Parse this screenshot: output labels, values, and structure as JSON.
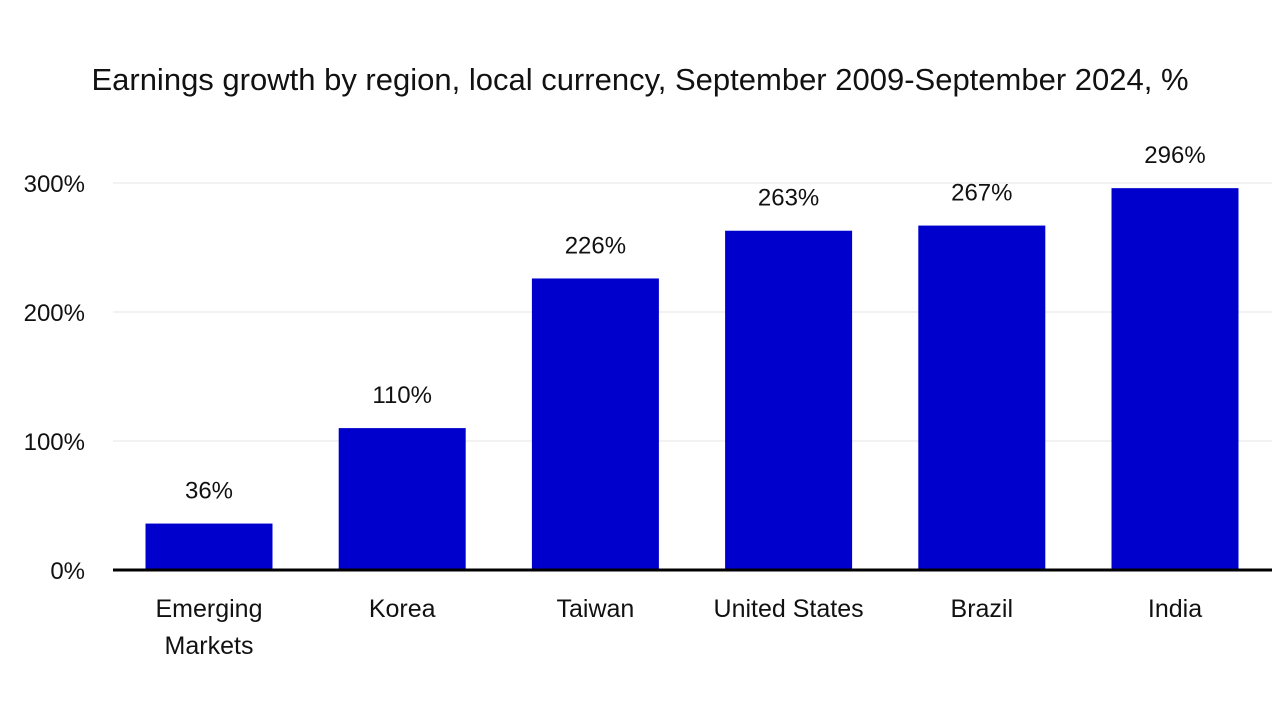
{
  "chart_data": {
    "type": "bar",
    "title": "Earnings growth by region, local currency, September 2009-September 2024, %",
    "xlabel": "",
    "ylabel": "",
    "categories": [
      "Emerging Markets",
      "Korea",
      "Taiwan",
      "United States",
      "Brazil",
      "India"
    ],
    "values": [
      36,
      110,
      226,
      263,
      267,
      296
    ],
    "data_labels": [
      "36%",
      "110%",
      "226%",
      "263%",
      "267%",
      "296%"
    ],
    "ylim": [
      0,
      300
    ],
    "yticks": [
      0,
      100,
      200,
      300
    ],
    "ytick_labels": [
      "0%",
      "100%",
      "200%",
      "300%"
    ],
    "grid": true,
    "legend": "none",
    "bar_color": "#0000CC"
  }
}
